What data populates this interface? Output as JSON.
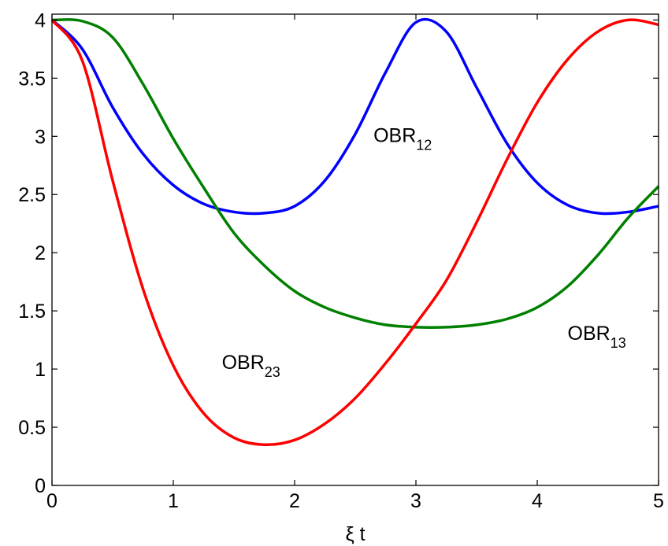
{
  "chart_data": {
    "type": "line",
    "title": "",
    "xlabel": "ξ t",
    "ylabel": "",
    "xlim": [
      0,
      5
    ],
    "ylim": [
      0,
      4.05
    ],
    "grid": false,
    "legend": "none",
    "xticks": [
      0,
      1,
      2,
      3,
      4,
      5
    ],
    "xtick_labels": [
      "0",
      "1",
      "2",
      "3",
      "4",
      "5"
    ],
    "yticks": [
      0,
      0.5,
      1,
      1.5,
      2,
      2.5,
      3,
      3.5,
      4
    ],
    "ytick_labels": [
      "0",
      "0.5",
      "1",
      "1.5",
      "2",
      "2.5",
      "3",
      "3.5",
      "4"
    ],
    "x": [
      0,
      0.25,
      0.5,
      0.75,
      1,
      1.25,
      1.5,
      1.75,
      2,
      2.25,
      2.5,
      2.75,
      3,
      3.25,
      3.5,
      3.75,
      4,
      4.25,
      4.5,
      4.75,
      5
    ],
    "series": [
      {
        "name": "OBR_12",
        "color": "#0000ff",
        "values": [
          4.0,
          3.75,
          3.25,
          2.85,
          2.58,
          2.42,
          2.35,
          2.34,
          2.4,
          2.62,
          3.02,
          3.55,
          3.98,
          3.9,
          3.42,
          2.94,
          2.6,
          2.41,
          2.34,
          2.35,
          2.4
        ]
      },
      {
        "name": "OBR_13",
        "color": "#008000",
        "values": [
          4.0,
          3.99,
          3.85,
          3.45,
          2.98,
          2.56,
          2.17,
          1.89,
          1.67,
          1.53,
          1.44,
          1.38,
          1.36,
          1.36,
          1.38,
          1.43,
          1.53,
          1.71,
          1.98,
          2.3,
          2.57
        ]
      },
      {
        "name": "OBR_23",
        "color": "#ff0000",
        "values": [
          4.0,
          3.65,
          2.62,
          1.69,
          1.03,
          0.62,
          0.41,
          0.35,
          0.39,
          0.53,
          0.75,
          1.05,
          1.39,
          1.76,
          2.26,
          2.8,
          3.29,
          3.66,
          3.9,
          4.0,
          3.96
        ]
      }
    ],
    "annotations": [
      {
        "main": "OBR",
        "sub": "12",
        "x": 2.65,
        "y": 2.95
      },
      {
        "main": "OBR",
        "sub": "13",
        "x": 4.25,
        "y": 1.25
      },
      {
        "main": "OBR",
        "sub": "23",
        "x": 1.4,
        "y": 1.0
      }
    ]
  }
}
